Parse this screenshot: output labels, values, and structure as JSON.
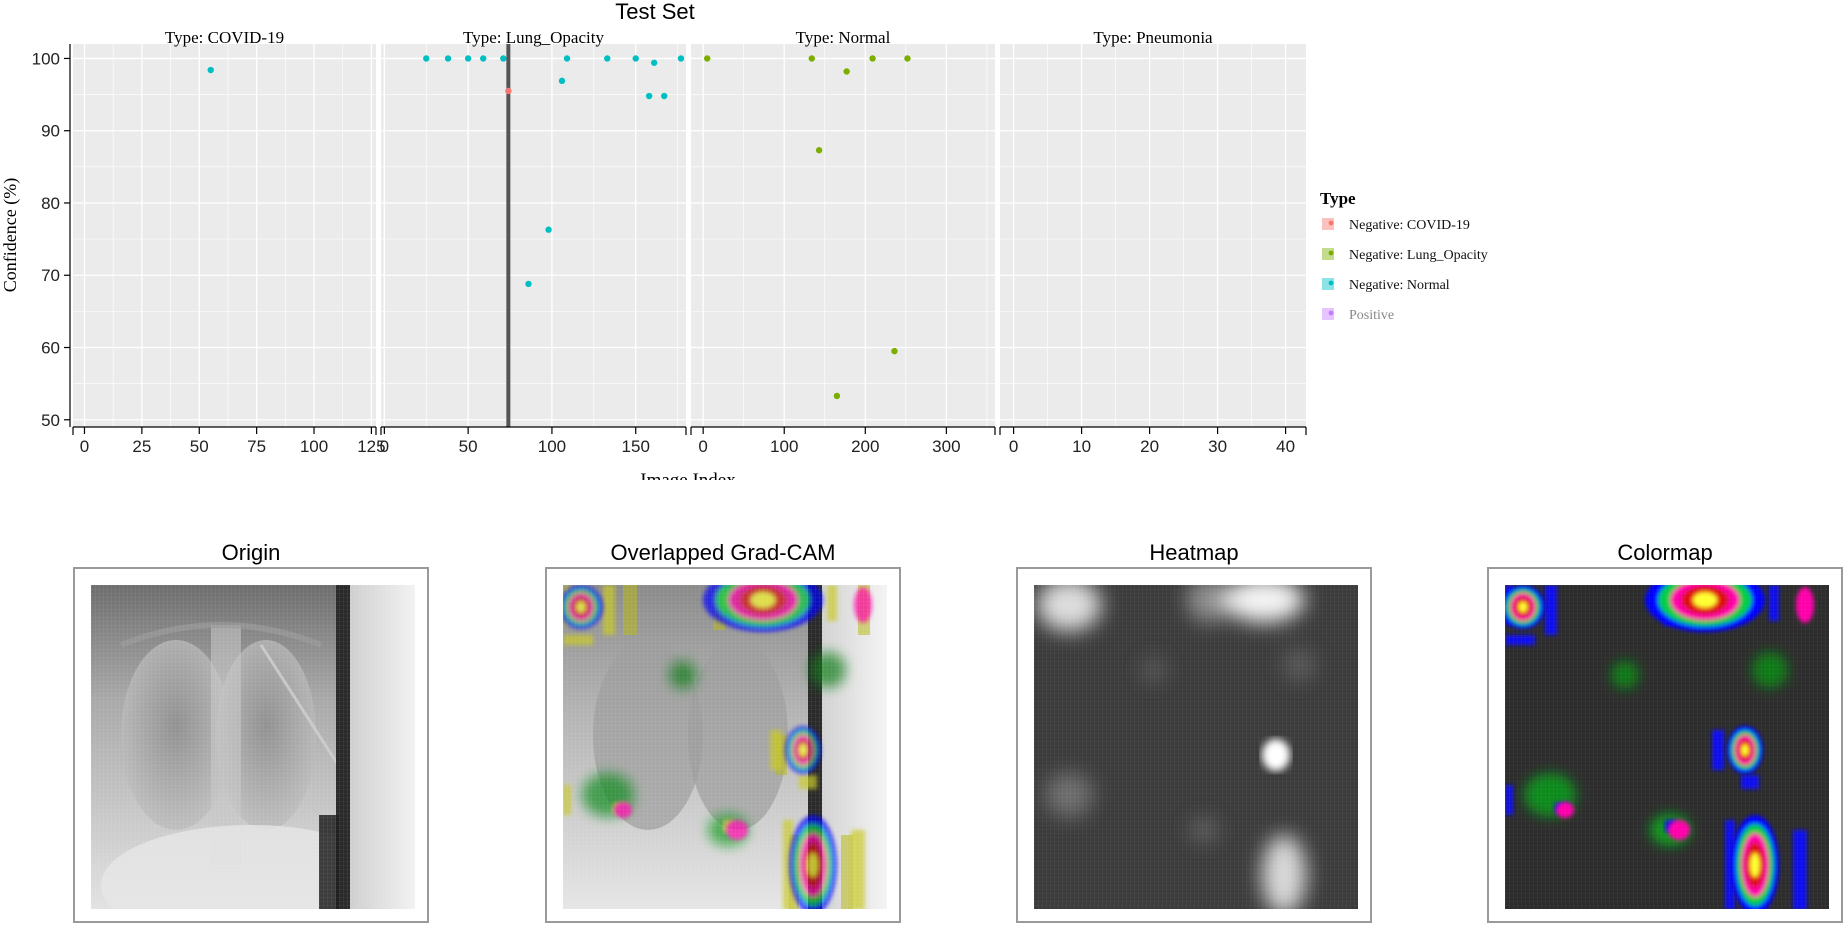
{
  "chart_data": {
    "type": "scatter",
    "title": "Test Set",
    "xlabel": "Image Index",
    "ylabel": "Confidence (%)",
    "ylim": [
      49,
      102
    ],
    "yticks": [
      50,
      60,
      70,
      80,
      90,
      100
    ],
    "legend": {
      "title": "Type",
      "placement": "right",
      "entries": [
        {
          "label": "Negative: COVID-19",
          "color": "#f8766d"
        },
        {
          "label": "Negative: Lung_Opacity",
          "color": "#7cae00"
        },
        {
          "label": "Negative: Normal",
          "color": "#00bfc4"
        },
        {
          "label": "Positive",
          "color": "#c77cff"
        }
      ]
    },
    "facets": [
      {
        "label": "Type: COVID-19",
        "xlim": [
          -5,
          127
        ],
        "xticks": [
          "0",
          "25",
          "50",
          "75",
          "100",
          "125"
        ],
        "xtick_values": [
          0,
          25,
          50,
          75,
          100,
          125
        ],
        "points": [
          {
            "x": 55,
            "y": 98.4,
            "series": "Negative: Normal"
          }
        ]
      },
      {
        "label": "Type: Lung_Opacity",
        "xlim": [
          -2,
          180
        ],
        "xticks": [
          "0",
          "50",
          "100",
          "150"
        ],
        "xtick_values": [
          0,
          50,
          100,
          150
        ],
        "vline": 74,
        "points": [
          {
            "x": 25,
            "y": 100,
            "series": "Negative: Normal"
          },
          {
            "x": 38,
            "y": 100,
            "series": "Negative: Normal"
          },
          {
            "x": 50,
            "y": 100,
            "series": "Negative: Normal"
          },
          {
            "x": 59,
            "y": 100,
            "series": "Negative: Normal"
          },
          {
            "x": 71,
            "y": 100,
            "series": "Negative: Normal"
          },
          {
            "x": 74,
            "y": 95.5,
            "series": "Negative: COVID-19"
          },
          {
            "x": 86,
            "y": 68.8,
            "series": "Negative: Normal"
          },
          {
            "x": 98,
            "y": 76.3,
            "series": "Negative: Normal"
          },
          {
            "x": 106,
            "y": 96.9,
            "series": "Negative: Normal"
          },
          {
            "x": 109,
            "y": 100,
            "series": "Negative: Normal"
          },
          {
            "x": 133,
            "y": 100,
            "series": "Negative: Normal"
          },
          {
            "x": 150,
            "y": 100,
            "series": "Negative: Normal"
          },
          {
            "x": 158,
            "y": 94.8,
            "series": "Negative: Normal"
          },
          {
            "x": 161,
            "y": 99.4,
            "series": "Negative: Normal"
          },
          {
            "x": 167,
            "y": 94.8,
            "series": "Negative: Normal"
          },
          {
            "x": 177,
            "y": 100,
            "series": "Negative: Normal"
          }
        ]
      },
      {
        "label": "Type: Normal",
        "xlim": [
          -15,
          360
        ],
        "xticks": [
          "0",
          "100",
          "200",
          "300"
        ],
        "xtick_values": [
          0,
          100,
          200,
          300
        ],
        "points": [
          {
            "x": 5,
            "y": 100,
            "series": "Negative: Lung_Opacity"
          },
          {
            "x": 134,
            "y": 100,
            "series": "Negative: Lung_Opacity"
          },
          {
            "x": 143,
            "y": 87.3,
            "series": "Negative: Lung_Opacity"
          },
          {
            "x": 165,
            "y": 53.3,
            "series": "Negative: Lung_Opacity"
          },
          {
            "x": 177,
            "y": 98.2,
            "series": "Negative: Lung_Opacity"
          },
          {
            "x": 209,
            "y": 100,
            "series": "Negative: Lung_Opacity"
          },
          {
            "x": 236,
            "y": 59.5,
            "series": "Negative: Lung_Opacity"
          },
          {
            "x": 252,
            "y": 100,
            "series": "Negative: Lung_Opacity"
          }
        ]
      },
      {
        "label": "Type: Pneumonia",
        "xlim": [
          -2,
          43
        ],
        "xticks": [
          "0",
          "10",
          "20",
          "30",
          "40"
        ],
        "xtick_values": [
          0,
          10,
          20,
          30,
          40
        ],
        "points": []
      }
    ]
  },
  "images": [
    {
      "title": "Origin",
      "kind": "origin"
    },
    {
      "title": "Overlapped Grad-CAM",
      "kind": "overlap"
    },
    {
      "title": "Heatmap",
      "kind": "heatmap"
    },
    {
      "title": "Colormap",
      "kind": "colormap"
    }
  ]
}
